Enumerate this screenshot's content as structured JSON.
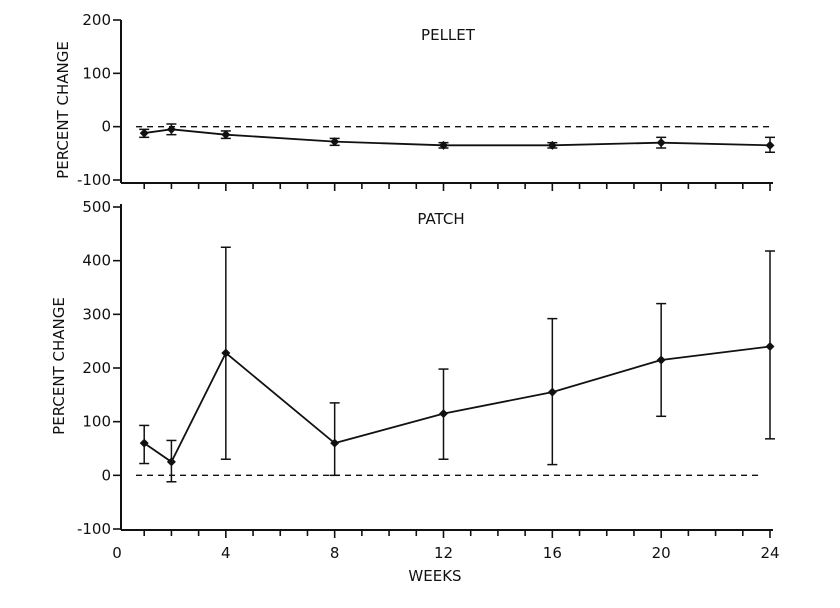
{
  "chart_data": [
    {
      "type": "line",
      "title": "PELLET",
      "ylabel": "PERCENT CHANGE",
      "xlabel": "",
      "xlim": [
        0,
        24
      ],
      "ylim": [
        -100,
        200
      ],
      "yticks": [
        -100,
        0,
        100,
        200
      ],
      "grid": false,
      "reference_line": 0,
      "series": [
        {
          "x": [
            1,
            2,
            4,
            8,
            12,
            16,
            20,
            24
          ],
          "y": [
            -12,
            -5,
            -15,
            -28,
            -35,
            -35,
            -30,
            -35
          ],
          "err_low": [
            -20,
            -15,
            -22,
            -35,
            -40,
            -40,
            -40,
            -48
          ],
          "err_high": [
            -5,
            5,
            -8,
            -22,
            -30,
            -30,
            -20,
            -20
          ]
        }
      ]
    },
    {
      "type": "line",
      "title": "PATCH",
      "ylabel": "PERCENT CHANGE",
      "xlabel": "WEEKS",
      "xlim": [
        0,
        24
      ],
      "ylim": [
        -100,
        500
      ],
      "yticks": [
        -100,
        0,
        100,
        200,
        300,
        400,
        500
      ],
      "xticks": [
        0,
        4,
        8,
        12,
        16,
        20,
        24
      ],
      "grid": false,
      "reference_line": 0,
      "series": [
        {
          "x": [
            1,
            2,
            4,
            8,
            12,
            16,
            20,
            24
          ],
          "y": [
            60,
            25,
            228,
            60,
            115,
            155,
            215,
            240
          ],
          "err_low": [
            22,
            -12,
            30,
            0,
            30,
            20,
            110,
            68
          ],
          "err_high": [
            93,
            65,
            425,
            135,
            198,
            292,
            320,
            418
          ]
        }
      ]
    }
  ]
}
